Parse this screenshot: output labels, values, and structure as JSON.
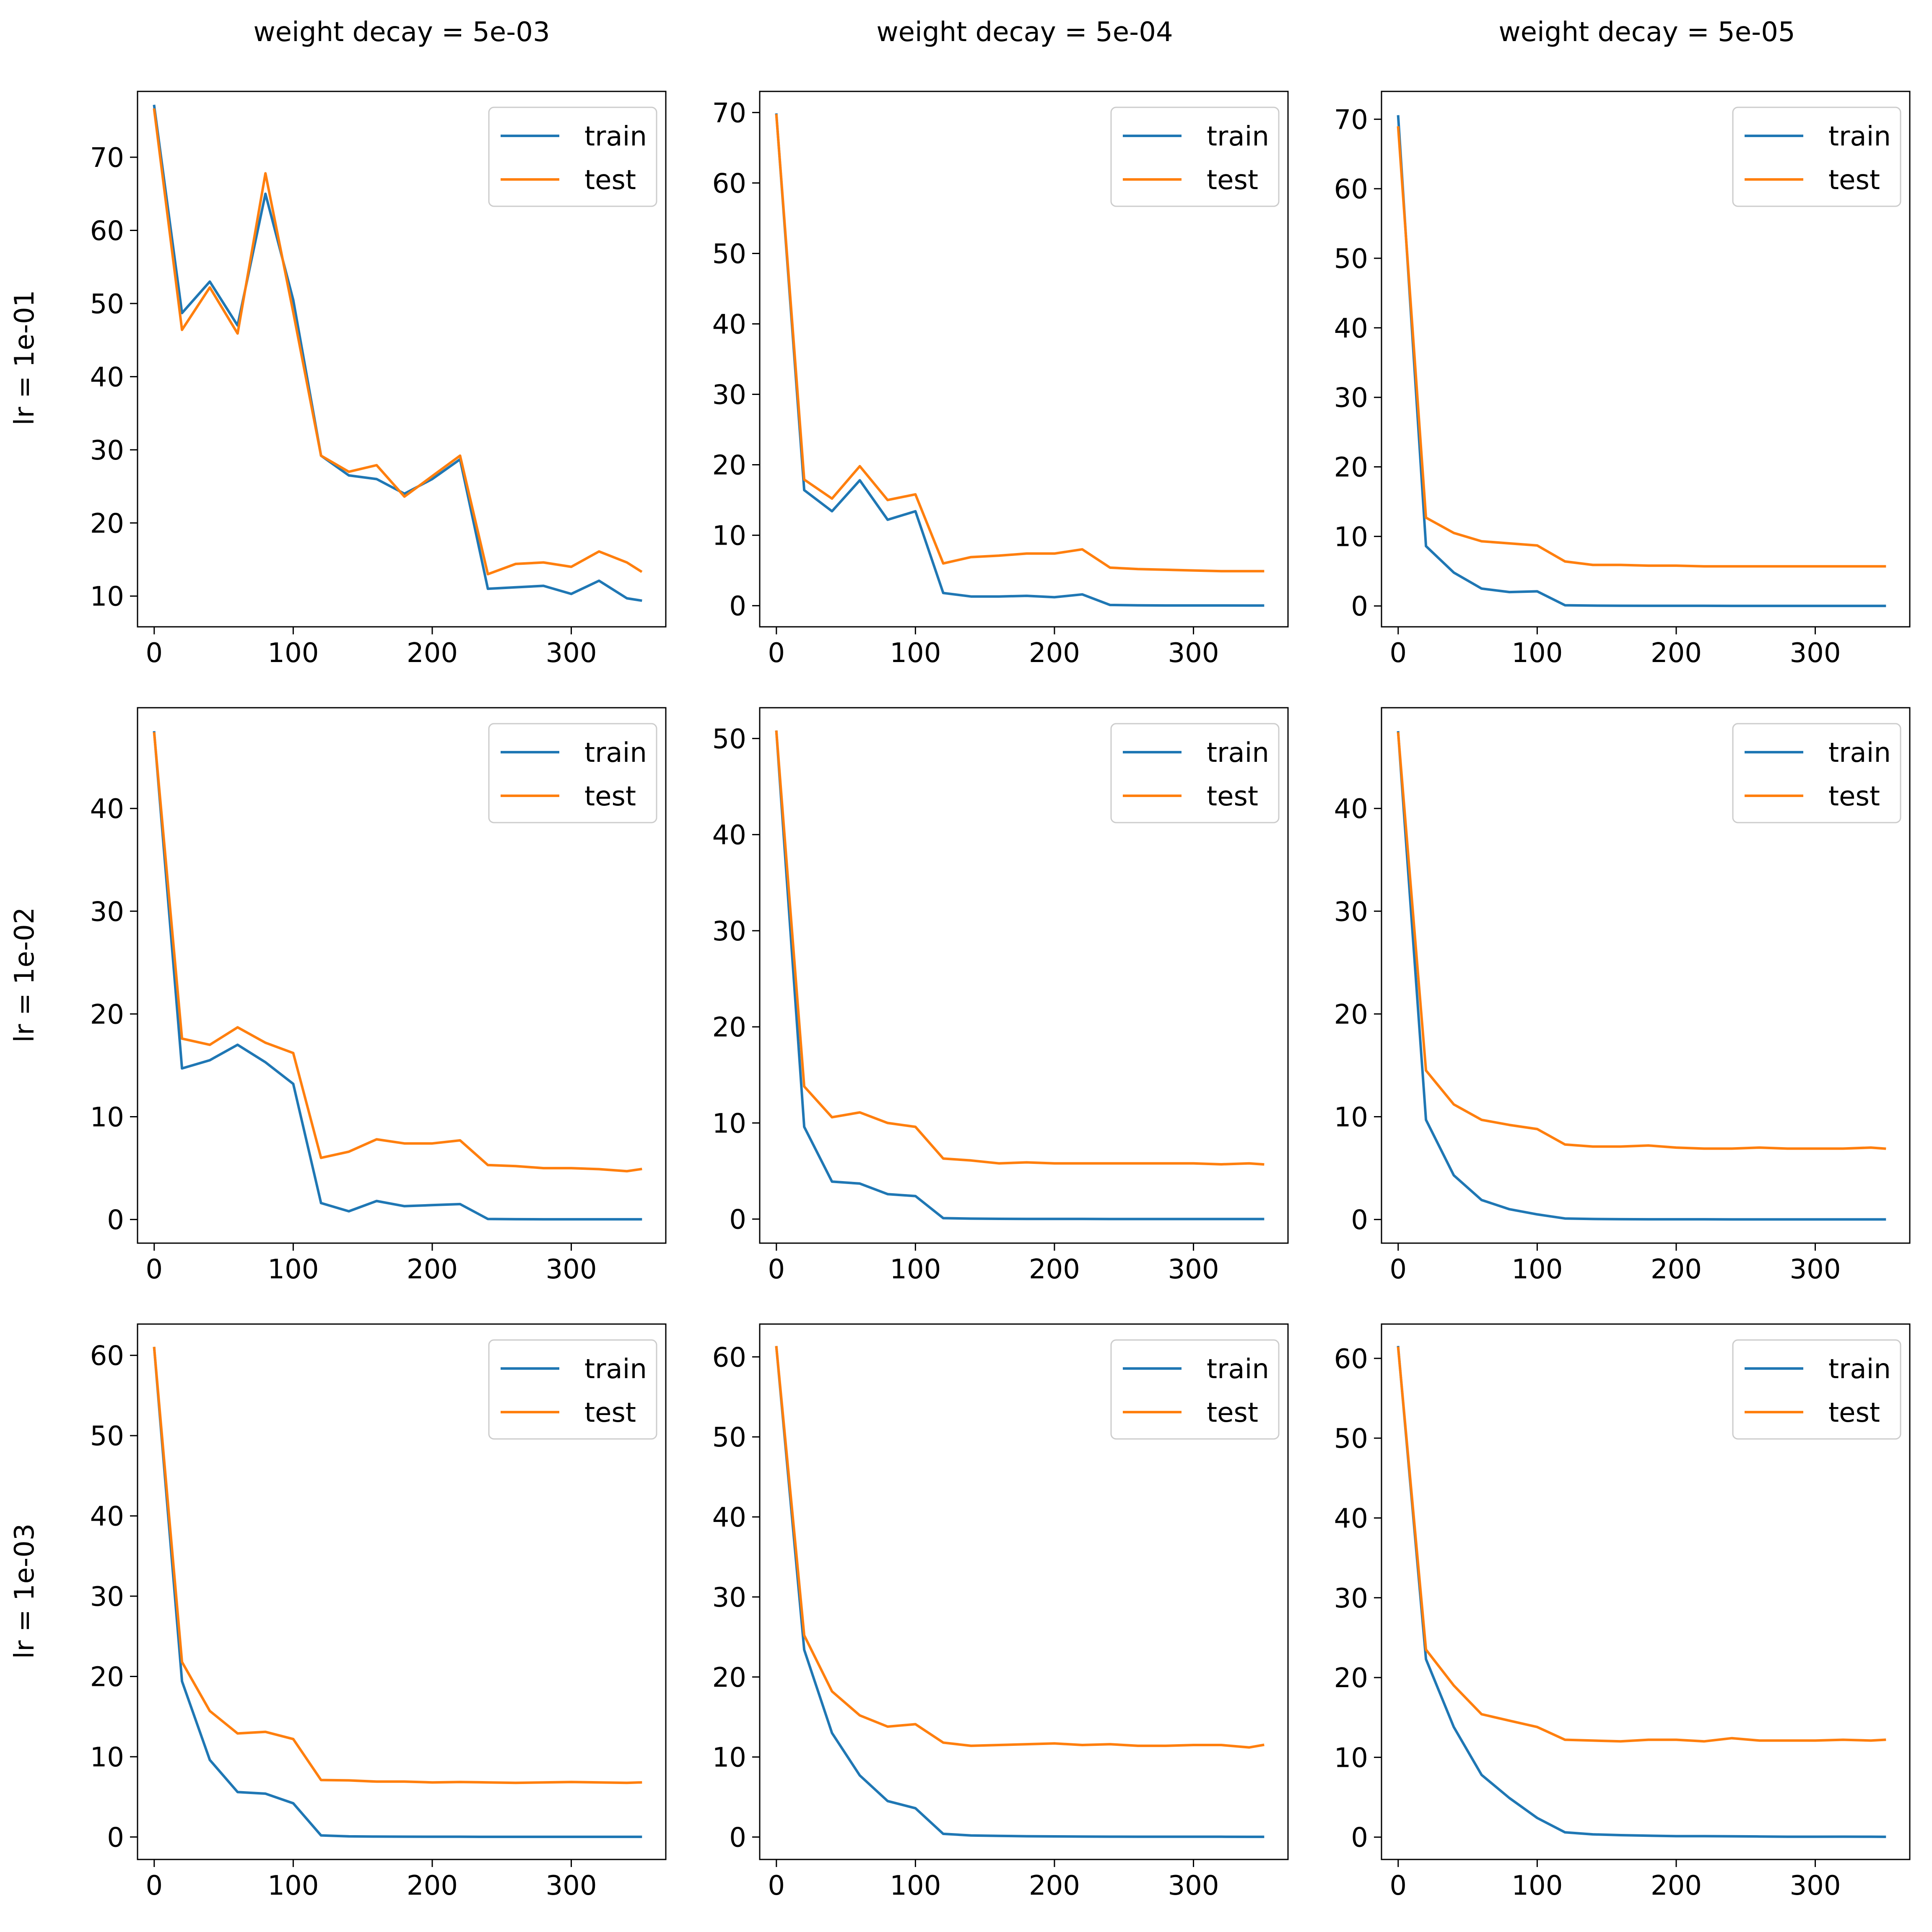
{
  "figure": {
    "column_titles": [
      "weight decay = 5e-03",
      "weight decay = 5e-04",
      "weight decay = 5e-05"
    ],
    "row_titles": [
      "lr = 1e-01",
      "lr = 1e-02",
      "lr = 1e-03"
    ],
    "colors": {
      "train": "#1f77b4",
      "test": "#ff7f0e",
      "axes": "#000000",
      "background": "#ffffff"
    }
  },
  "chart_data": [
    {
      "type": "line",
      "title": "weight decay = 5e-03",
      "ylabel": "lr = 1e-01",
      "legend": {
        "position": "top-right"
      },
      "x": [
        0,
        20,
        40,
        60,
        80,
        100,
        120,
        140,
        160,
        180,
        200,
        220,
        240,
        260,
        280,
        300,
        320,
        340,
        350
      ],
      "xlim": [
        -12,
        368
      ],
      "ylim": [
        5.8,
        79
      ],
      "xticks": [
        0,
        100,
        200,
        300
      ],
      "yticks": [
        10,
        20,
        30,
        40,
        50,
        60,
        70
      ],
      "series": [
        {
          "name": "train",
          "values": [
            77,
            48.7,
            53,
            47,
            65,
            50.5,
            29.2,
            26.5,
            26,
            24,
            26,
            28.7,
            11,
            11.2,
            11.4,
            10.3,
            12.1,
            9.7,
            9.4
          ]
        },
        {
          "name": "test",
          "values": [
            76.5,
            46.4,
            52.2,
            45.9,
            67.8,
            48.8,
            29.2,
            27,
            27.9,
            23.6,
            26.4,
            29.2,
            13,
            14.4,
            14.6,
            14,
            16.1,
            14.6,
            13.4
          ]
        }
      ]
    },
    {
      "type": "line",
      "title": "weight decay = 5e-04",
      "ylabel": "",
      "legend": {
        "position": "top-right"
      },
      "x": [
        0,
        20,
        40,
        60,
        80,
        100,
        120,
        140,
        160,
        180,
        200,
        220,
        240,
        260,
        280,
        300,
        320,
        340,
        350
      ],
      "xlim": [
        -12,
        368
      ],
      "ylim": [
        -3,
        73
      ],
      "xticks": [
        0,
        100,
        200,
        300
      ],
      "yticks": [
        0,
        10,
        20,
        30,
        40,
        50,
        60,
        70
      ],
      "series": [
        {
          "name": "train",
          "values": [
            69.7,
            16.4,
            13.4,
            17.8,
            12.2,
            13.4,
            1.8,
            1.3,
            1.3,
            1.4,
            1.2,
            1.6,
            0.1,
            0.05,
            0.03,
            0.03,
            0.03,
            0.02,
            0.02
          ]
        },
        {
          "name": "test",
          "values": [
            69.6,
            17.9,
            15.2,
            19.8,
            15,
            15.8,
            6,
            6.9,
            7.1,
            7.4,
            7.4,
            8,
            5.4,
            5.2,
            5.1,
            5,
            4.9,
            4.9,
            4.9
          ]
        }
      ]
    },
    {
      "type": "line",
      "title": "weight decay = 5e-05",
      "ylabel": "",
      "legend": {
        "position": "top-right"
      },
      "x": [
        0,
        20,
        40,
        60,
        80,
        100,
        120,
        140,
        160,
        180,
        200,
        220,
        240,
        260,
        280,
        300,
        320,
        340,
        350
      ],
      "xlim": [
        -12,
        368
      ],
      "ylim": [
        -3,
        74
      ],
      "xticks": [
        0,
        100,
        200,
        300
      ],
      "yticks": [
        0,
        10,
        20,
        30,
        40,
        50,
        60,
        70
      ],
      "series": [
        {
          "name": "train",
          "values": [
            70.4,
            8.6,
            4.8,
            2.5,
            2,
            2.1,
            0.1,
            0.05,
            0.03,
            0.02,
            0.02,
            0.02,
            0.01,
            0.01,
            0.01,
            0.01,
            0.01,
            0.01,
            0.01
          ]
        },
        {
          "name": "test",
          "values": [
            68.8,
            12.7,
            10.5,
            9.3,
            9,
            8.7,
            6.4,
            5.9,
            5.9,
            5.8,
            5.8,
            5.7,
            5.7,
            5.7,
            5.7,
            5.7,
            5.7,
            5.7,
            5.7
          ]
        }
      ]
    },
    {
      "type": "line",
      "title": "",
      "ylabel": "lr = 1e-02",
      "legend": {
        "position": "top-right"
      },
      "x": [
        0,
        20,
        40,
        60,
        80,
        100,
        120,
        140,
        160,
        180,
        200,
        220,
        240,
        260,
        280,
        300,
        320,
        340,
        350
      ],
      "xlim": [
        -12,
        368
      ],
      "ylim": [
        -2.3,
        49.8
      ],
      "xticks": [
        0,
        100,
        200,
        300
      ],
      "yticks": [
        0,
        10,
        20,
        30,
        40
      ],
      "series": [
        {
          "name": "train",
          "values": [
            47.4,
            14.7,
            15.5,
            17,
            15.3,
            13.2,
            1.6,
            0.8,
            1.8,
            1.3,
            1.4,
            1.5,
            0.05,
            0.03,
            0.02,
            0.02,
            0.02,
            0.02,
            0.02
          ]
        },
        {
          "name": "test",
          "values": [
            47.3,
            17.6,
            17,
            18.7,
            17.2,
            16.2,
            6,
            6.6,
            7.8,
            7.4,
            7.4,
            7.7,
            5.3,
            5.2,
            5,
            5,
            4.9,
            4.7,
            4.9
          ]
        }
      ]
    },
    {
      "type": "line",
      "title": "",
      "ylabel": "",
      "legend": {
        "position": "top-right"
      },
      "x": [
        0,
        20,
        40,
        60,
        80,
        100,
        120,
        140,
        160,
        180,
        200,
        220,
        240,
        260,
        280,
        300,
        320,
        340,
        350
      ],
      "xlim": [
        -12,
        368
      ],
      "ylim": [
        -2.5,
        53.2
      ],
      "xticks": [
        0,
        100,
        200,
        300
      ],
      "yticks": [
        0,
        10,
        20,
        30,
        40,
        50
      ],
      "series": [
        {
          "name": "train",
          "values": [
            50.7,
            9.6,
            3.9,
            3.7,
            2.6,
            2.4,
            0.1,
            0.05,
            0.03,
            0.02,
            0.02,
            0.02,
            0.01,
            0.01,
            0.01,
            0.01,
            0.01,
            0.01,
            0.01
          ]
        },
        {
          "name": "test",
          "values": [
            50.7,
            13.8,
            10.6,
            11.1,
            10,
            9.6,
            6.3,
            6.1,
            5.8,
            5.9,
            5.8,
            5.8,
            5.8,
            5.8,
            5.8,
            5.8,
            5.7,
            5.8,
            5.7
          ]
        }
      ]
    },
    {
      "type": "line",
      "title": "",
      "ylabel": "",
      "legend": {
        "position": "top-right"
      },
      "x": [
        0,
        20,
        40,
        60,
        80,
        100,
        120,
        140,
        160,
        180,
        200,
        220,
        240,
        260,
        280,
        300,
        320,
        340,
        350
      ],
      "xlim": [
        -12,
        368
      ],
      "ylim": [
        -2.3,
        49.8
      ],
      "xticks": [
        0,
        100,
        200,
        300
      ],
      "yticks": [
        0,
        10,
        20,
        30,
        40
      ],
      "series": [
        {
          "name": "train",
          "values": [
            47.4,
            9.7,
            4.3,
            1.9,
            1,
            0.5,
            0.1,
            0.05,
            0.03,
            0.02,
            0.02,
            0.02,
            0.01,
            0.01,
            0.01,
            0.01,
            0.01,
            0.01,
            0.01
          ]
        },
        {
          "name": "test",
          "values": [
            47.3,
            14.5,
            11.2,
            9.7,
            9.2,
            8.8,
            7.3,
            7.1,
            7.1,
            7.2,
            7,
            6.9,
            6.9,
            7,
            6.9,
            6.9,
            6.9,
            7,
            6.9
          ]
        }
      ]
    },
    {
      "type": "line",
      "title": "",
      "ylabel": "lr = 1e-03",
      "legend": {
        "position": "top-right"
      },
      "x": [
        0,
        20,
        40,
        60,
        80,
        100,
        120,
        140,
        160,
        180,
        200,
        220,
        240,
        260,
        280,
        300,
        320,
        340,
        350
      ],
      "xlim": [
        -12,
        368
      ],
      "ylim": [
        -2.8,
        63.9
      ],
      "xticks": [
        0,
        100,
        200,
        300
      ],
      "yticks": [
        0,
        10,
        20,
        30,
        40,
        50,
        60
      ],
      "series": [
        {
          "name": "train",
          "values": [
            60.9,
            19.4,
            9.6,
            5.6,
            5.4,
            4.2,
            0.2,
            0.08,
            0.05,
            0.04,
            0.03,
            0.03,
            0.02,
            0.02,
            0.02,
            0.02,
            0.02,
            0.02,
            0.02
          ]
        },
        {
          "name": "test",
          "values": [
            60.9,
            21.8,
            15.7,
            12.9,
            13.1,
            12.2,
            7.1,
            7.05,
            6.9,
            6.9,
            6.8,
            6.85,
            6.8,
            6.75,
            6.8,
            6.85,
            6.8,
            6.75,
            6.8
          ]
        }
      ]
    },
    {
      "type": "line",
      "title": "",
      "ylabel": "",
      "legend": {
        "position": "top-right"
      },
      "x": [
        0,
        20,
        40,
        60,
        80,
        100,
        120,
        140,
        160,
        180,
        200,
        220,
        240,
        260,
        280,
        300,
        320,
        340,
        350
      ],
      "xlim": [
        -12,
        368
      ],
      "ylim": [
        -2.8,
        64.1
      ],
      "xticks": [
        0,
        100,
        200,
        300
      ],
      "yticks": [
        0,
        10,
        20,
        30,
        40,
        50,
        60
      ],
      "series": [
        {
          "name": "train",
          "values": [
            61.2,
            23.4,
            13,
            7.7,
            4.5,
            3.6,
            0.4,
            0.2,
            0.15,
            0.1,
            0.08,
            0.06,
            0.05,
            0.04,
            0.04,
            0.04,
            0.04,
            0.03,
            0.03
          ]
        },
        {
          "name": "test",
          "values": [
            61.2,
            25.2,
            18.2,
            15.2,
            13.8,
            14.1,
            11.8,
            11.4,
            11.5,
            11.6,
            11.7,
            11.5,
            11.6,
            11.4,
            11.4,
            11.5,
            11.5,
            11.2,
            11.5
          ]
        }
      ]
    },
    {
      "type": "line",
      "title": "",
      "ylabel": "",
      "legend": {
        "position": "top-right"
      },
      "x": [
        0,
        20,
        40,
        60,
        80,
        100,
        120,
        140,
        160,
        180,
        200,
        220,
        240,
        260,
        280,
        300,
        320,
        340,
        350
      ],
      "xlim": [
        -12,
        368
      ],
      "ylim": [
        -2.8,
        64.3
      ],
      "xticks": [
        0,
        100,
        200,
        300
      ],
      "yticks": [
        0,
        10,
        20,
        30,
        40,
        50,
        60
      ],
      "series": [
        {
          "name": "train",
          "values": [
            61.4,
            22.3,
            13.8,
            7.8,
            4.9,
            2.4,
            0.6,
            0.35,
            0.25,
            0.18,
            0.12,
            0.12,
            0.1,
            0.08,
            0.05,
            0.05,
            0.06,
            0.05,
            0.04
          ]
        },
        {
          "name": "test",
          "values": [
            61.3,
            23.5,
            19,
            15.4,
            14.6,
            13.8,
            12.2,
            12.1,
            12,
            12.2,
            12.2,
            12,
            12.4,
            12.1,
            12.1,
            12.1,
            12.2,
            12.1,
            12.2
          ]
        }
      ]
    }
  ]
}
